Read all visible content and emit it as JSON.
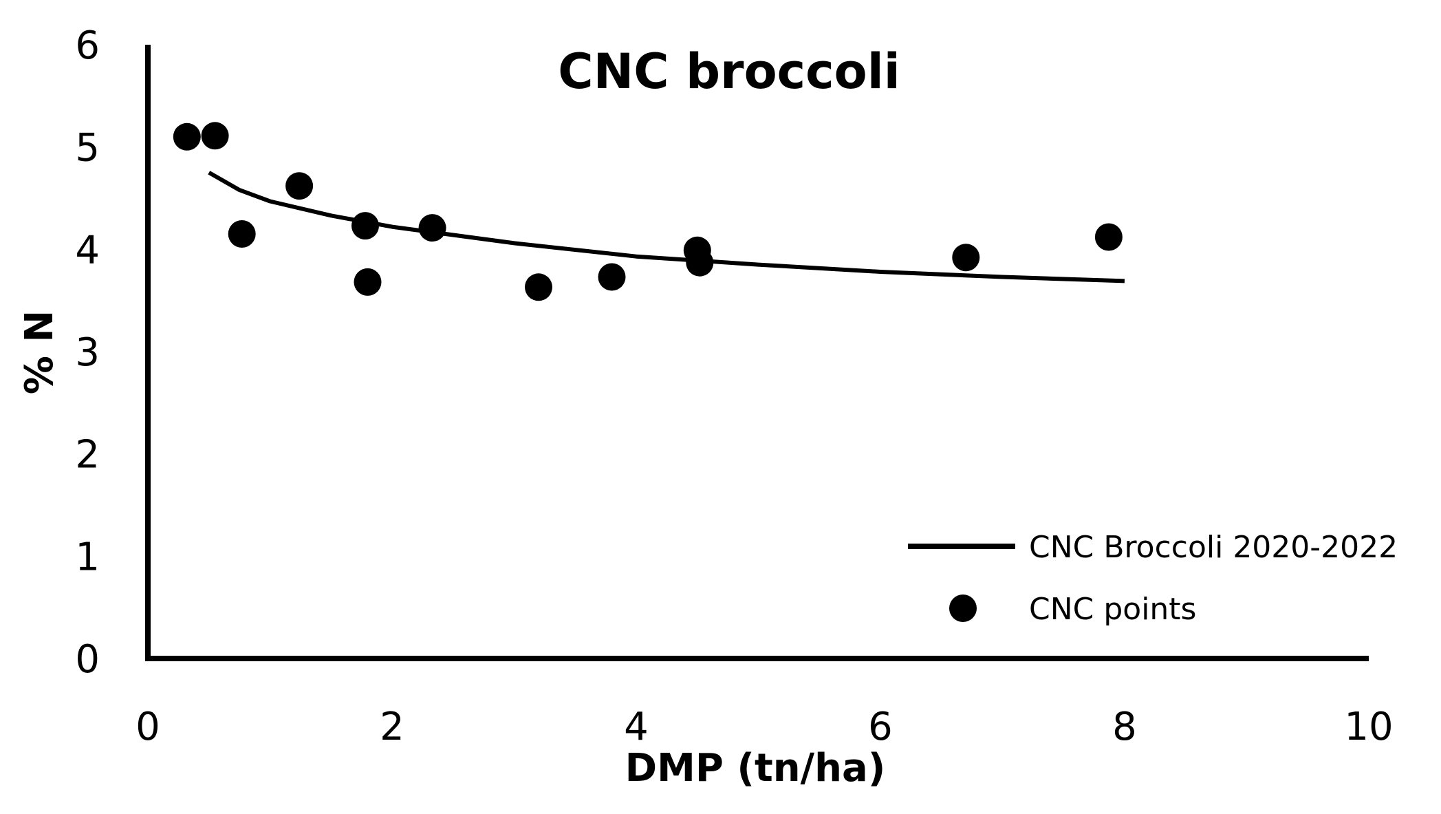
{
  "chart_data": {
    "type": "scatter",
    "title": "CNC broccoli",
    "xlabel": "DMP (tn/ha)",
    "ylabel": "% N",
    "xlim": [
      0,
      10
    ],
    "ylim": [
      0,
      6
    ],
    "xticks": [
      0,
      2,
      4,
      6,
      8,
      10
    ],
    "yticks": [
      0,
      1,
      2,
      3,
      4,
      5,
      6
    ],
    "grid": false,
    "legend_position": "bottom-right",
    "series": [
      {
        "name": "CNC points",
        "kind": "scatter",
        "color": "#000000",
        "points": [
          {
            "x": 0.32,
            "y": 5.1
          },
          {
            "x": 0.55,
            "y": 5.11
          },
          {
            "x": 0.77,
            "y": 4.15
          },
          {
            "x": 1.24,
            "y": 4.62
          },
          {
            "x": 1.78,
            "y": 4.23
          },
          {
            "x": 1.8,
            "y": 3.68
          },
          {
            "x": 2.33,
            "y": 4.21
          },
          {
            "x": 3.2,
            "y": 3.63
          },
          {
            "x": 3.8,
            "y": 3.73
          },
          {
            "x": 4.5,
            "y": 3.99
          },
          {
            "x": 4.52,
            "y": 3.87
          },
          {
            "x": 6.7,
            "y": 3.92
          },
          {
            "x": 7.87,
            "y": 4.12
          }
        ]
      },
      {
        "name": "CNC Broccoli 2020-2022",
        "kind": "line",
        "color": "#000000",
        "points": [
          {
            "x": 0.5,
            "y": 4.75
          },
          {
            "x": 0.75,
            "y": 4.58
          },
          {
            "x": 1.0,
            "y": 4.47
          },
          {
            "x": 1.5,
            "y": 4.33
          },
          {
            "x": 2.0,
            "y": 4.22
          },
          {
            "x": 3.0,
            "y": 4.06
          },
          {
            "x": 4.0,
            "y": 3.93
          },
          {
            "x": 5.0,
            "y": 3.85
          },
          {
            "x": 6.0,
            "y": 3.78
          },
          {
            "x": 7.0,
            "y": 3.73
          },
          {
            "x": 8.0,
            "y": 3.69
          }
        ]
      }
    ]
  }
}
